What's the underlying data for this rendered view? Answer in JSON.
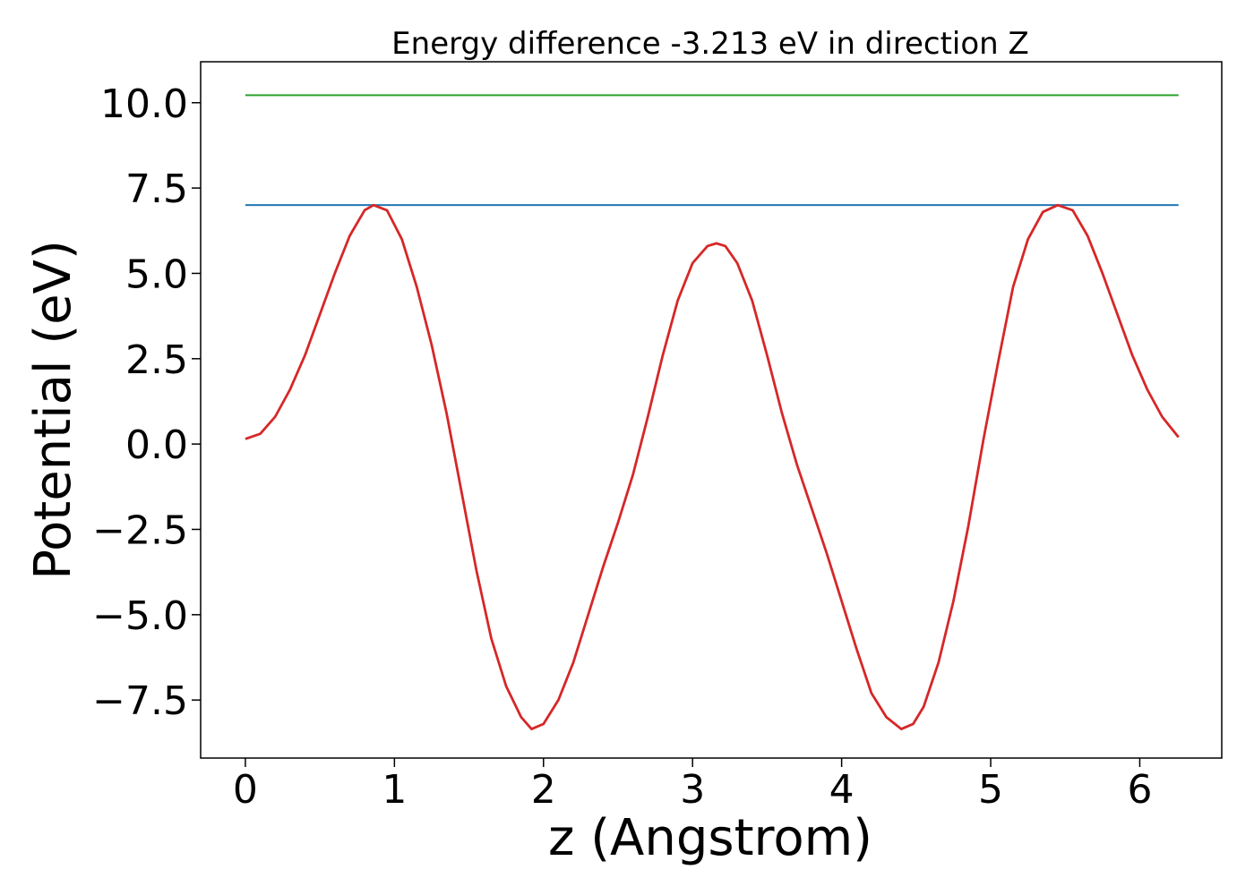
{
  "chart_data": {
    "type": "line",
    "title": "Energy difference -3.213 eV in direction Z",
    "xlabel": "z (Angstrom)",
    "ylabel": "Potential (eV)",
    "xlim": [
      -0.3,
      6.55
    ],
    "ylim": [
      -9.2,
      11.2
    ],
    "x_ticks": [
      0,
      1,
      2,
      3,
      4,
      5,
      6
    ],
    "x_tick_labels": [
      "0",
      "1",
      "2",
      "3",
      "4",
      "5",
      "6"
    ],
    "y_ticks": [
      -7.5,
      -5.0,
      -2.5,
      0.0,
      2.5,
      5.0,
      7.5,
      10.0
    ],
    "y_tick_labels": [
      "−7.5",
      "−5.0",
      "−2.5",
      "0.0",
      "2.5",
      "5.0",
      "7.5",
      "10.0"
    ],
    "grid": false,
    "legend": "none",
    "hlines": [
      {
        "y": 10.22,
        "x": [
          0,
          6.26
        ],
        "color": "#2ca02c"
      },
      {
        "y": 7.0,
        "x": [
          0,
          6.26
        ],
        "color": "#1f77b4"
      }
    ],
    "series": [
      {
        "color": "#d62728",
        "points": [
          [
            0.0,
            0.15
          ],
          [
            0.1,
            0.3
          ],
          [
            0.2,
            0.8
          ],
          [
            0.3,
            1.6
          ],
          [
            0.4,
            2.6
          ],
          [
            0.5,
            3.8
          ],
          [
            0.6,
            5.0
          ],
          [
            0.7,
            6.1
          ],
          [
            0.8,
            6.85
          ],
          [
            0.86,
            7.0
          ],
          [
            0.95,
            6.85
          ],
          [
            1.05,
            6.0
          ],
          [
            1.15,
            4.6
          ],
          [
            1.25,
            2.9
          ],
          [
            1.35,
            0.9
          ],
          [
            1.45,
            -1.4
          ],
          [
            1.55,
            -3.7
          ],
          [
            1.65,
            -5.7
          ],
          [
            1.75,
            -7.1
          ],
          [
            1.85,
            -8.0
          ],
          [
            1.92,
            -8.35
          ],
          [
            2.0,
            -8.2
          ],
          [
            2.1,
            -7.5
          ],
          [
            2.2,
            -6.4
          ],
          [
            2.3,
            -5.0
          ],
          [
            2.4,
            -3.6
          ],
          [
            2.5,
            -2.3
          ],
          [
            2.6,
            -0.9
          ],
          [
            2.7,
            0.8
          ],
          [
            2.8,
            2.6
          ],
          [
            2.9,
            4.2
          ],
          [
            3.0,
            5.3
          ],
          [
            3.1,
            5.8
          ],
          [
            3.16,
            5.88
          ],
          [
            3.22,
            5.8
          ],
          [
            3.3,
            5.3
          ],
          [
            3.4,
            4.2
          ],
          [
            3.5,
            2.6
          ],
          [
            3.6,
            0.9
          ],
          [
            3.7,
            -0.6
          ],
          [
            3.8,
            -1.9
          ],
          [
            3.9,
            -3.2
          ],
          [
            4.0,
            -4.6
          ],
          [
            4.1,
            -6.0
          ],
          [
            4.2,
            -7.3
          ],
          [
            4.3,
            -8.0
          ],
          [
            4.4,
            -8.35
          ],
          [
            4.48,
            -8.2
          ],
          [
            4.55,
            -7.7
          ],
          [
            4.65,
            -6.4
          ],
          [
            4.75,
            -4.6
          ],
          [
            4.85,
            -2.4
          ],
          [
            4.95,
            0.1
          ],
          [
            5.05,
            2.4
          ],
          [
            5.15,
            4.6
          ],
          [
            5.25,
            6.0
          ],
          [
            5.35,
            6.8
          ],
          [
            5.45,
            7.0
          ],
          [
            5.55,
            6.85
          ],
          [
            5.65,
            6.1
          ],
          [
            5.75,
            5.0
          ],
          [
            5.85,
            3.8
          ],
          [
            5.95,
            2.6
          ],
          [
            6.05,
            1.6
          ],
          [
            6.15,
            0.8
          ],
          [
            6.26,
            0.2
          ]
        ]
      }
    ]
  }
}
